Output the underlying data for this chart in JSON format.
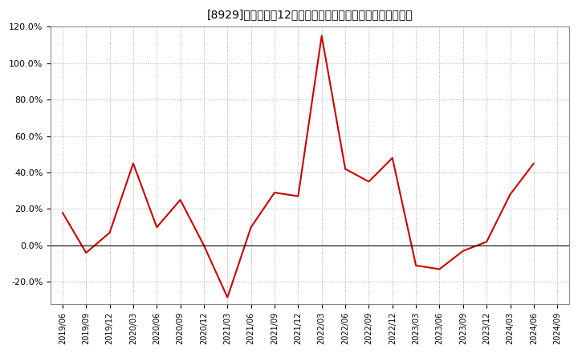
{
  "title": "[8929]　売上高の12か月移動合計の対前年同期増減率の推移",
  "line_color": "#cc0000",
  "background_color": "#ffffff",
  "grid_color": "#aaaaaa",
  "ylim": [
    -0.32,
    0.135
  ],
  "yticks": [
    -0.2,
    0.0,
    0.2,
    0.4,
    0.6,
    0.8,
    1.0,
    1.2
  ],
  "dates": [
    "2019/06",
    "2019/09",
    "2019/12",
    "2020/03",
    "2020/06",
    "2020/09",
    "2020/12",
    "2021/03",
    "2021/06",
    "2021/09",
    "2021/12",
    "2022/03",
    "2022/06",
    "2022/09",
    "2022/12",
    "2023/03",
    "2023/06",
    "2023/09",
    "2023/12",
    "2024/03",
    "2024/06",
    "2024/09"
  ],
  "values": [
    0.18,
    -0.04,
    0.07,
    0.45,
    0.1,
    0.25,
    0.0,
    -0.285,
    0.1,
    0.29,
    0.27,
    1.15,
    0.42,
    0.35,
    0.48,
    -0.11,
    -0.13,
    -0.03,
    0.02,
    0.28,
    0.45,
    null
  ]
}
